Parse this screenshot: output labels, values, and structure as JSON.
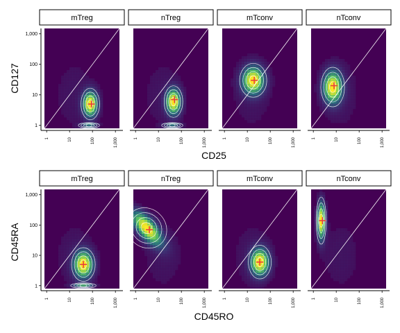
{
  "chart_data": [
    {
      "type": "heatmap",
      "title": "",
      "xlabel": "CD25",
      "ylabel": "CD127",
      "scale": "log10",
      "xlim": [
        0.8,
        1500
      ],
      "ylim": [
        0.8,
        1500
      ],
      "x_ticks": [
        "1",
        "10",
        "100",
        "1,000"
      ],
      "y_ticks": [
        "1",
        "10",
        "100",
        "1,000"
      ],
      "identity_line": true,
      "facets": [
        {
          "label": "mTreg",
          "centroid": {
            "x": 90,
            "y": 5
          },
          "modes": [
            {
              "x": 80,
              "y": 5,
              "sx": 0.22,
              "sy": 0.28,
              "w": 1.0
            },
            {
              "x": 70,
              "y": 1,
              "sx": 0.25,
              "sy": 0.05,
              "w": 0.5
            }
          ]
        },
        {
          "label": "nTreg",
          "centroid": {
            "x": 50,
            "y": 7
          },
          "modes": [
            {
              "x": 45,
              "y": 6,
              "sx": 0.22,
              "sy": 0.28,
              "w": 1.0
            },
            {
              "x": 40,
              "y": 1,
              "sx": 0.25,
              "sy": 0.05,
              "w": 0.5
            }
          ]
        },
        {
          "label": "mTconv",
          "centroid": {
            "x": 20,
            "y": 30
          },
          "modes": [
            {
              "x": 18,
              "y": 30,
              "sx": 0.32,
              "sy": 0.3,
              "w": 1.0
            }
          ]
        },
        {
          "label": "nTconv",
          "centroid": {
            "x": 8,
            "y": 20
          },
          "modes": [
            {
              "x": 7,
              "y": 18,
              "sx": 0.28,
              "sy": 0.35,
              "w": 1.0
            }
          ]
        }
      ]
    },
    {
      "type": "heatmap",
      "title": "",
      "xlabel": "CD45RO",
      "ylabel": "CD45RA",
      "scale": "log10",
      "xlim": [
        0.8,
        1500
      ],
      "ylim": [
        0.8,
        1500
      ],
      "x_ticks": [
        "1",
        "10",
        "100",
        "1,000"
      ],
      "y_ticks": [
        "1",
        "10",
        "100",
        "1,000"
      ],
      "identity_line": true,
      "facets": [
        {
          "label": "mTreg",
          "centroid": {
            "x": 40,
            "y": 5
          },
          "modes": [
            {
              "x": 40,
              "y": 5,
              "sx": 0.28,
              "sy": 0.3,
              "w": 1.0
            },
            {
              "x": 40,
              "y": 1,
              "sx": 0.3,
              "sy": 0.05,
              "w": 0.5
            }
          ]
        },
        {
          "label": "nTreg",
          "centroid": {
            "x": 4,
            "y": 70
          },
          "modes": [
            {
              "x": 3,
              "y": 80,
              "sx": 0.45,
              "sy": 0.38,
              "w": 1.0,
              "rho": -0.7
            }
          ]
        },
        {
          "label": "mTconv",
          "centroid": {
            "x": 35,
            "y": 6
          },
          "modes": [
            {
              "x": 35,
              "y": 6,
              "sx": 0.27,
              "sy": 0.3,
              "w": 1.0
            }
          ]
        },
        {
          "label": "nTconv",
          "centroid": {
            "x": 2.5,
            "y": 140
          },
          "modes": [
            {
              "x": 2.2,
              "y": 140,
              "sx": 0.12,
              "sy": 0.42,
              "w": 1.0
            }
          ]
        }
      ]
    }
  ],
  "colors": {
    "background_low": "#440154",
    "mid": "#31688e",
    "teal": "#35b779",
    "high": "#fde725",
    "contour": "#ffffff",
    "centroid": "#e8413c",
    "strip_fill": "#ffffff",
    "strip_border": "#000000"
  }
}
